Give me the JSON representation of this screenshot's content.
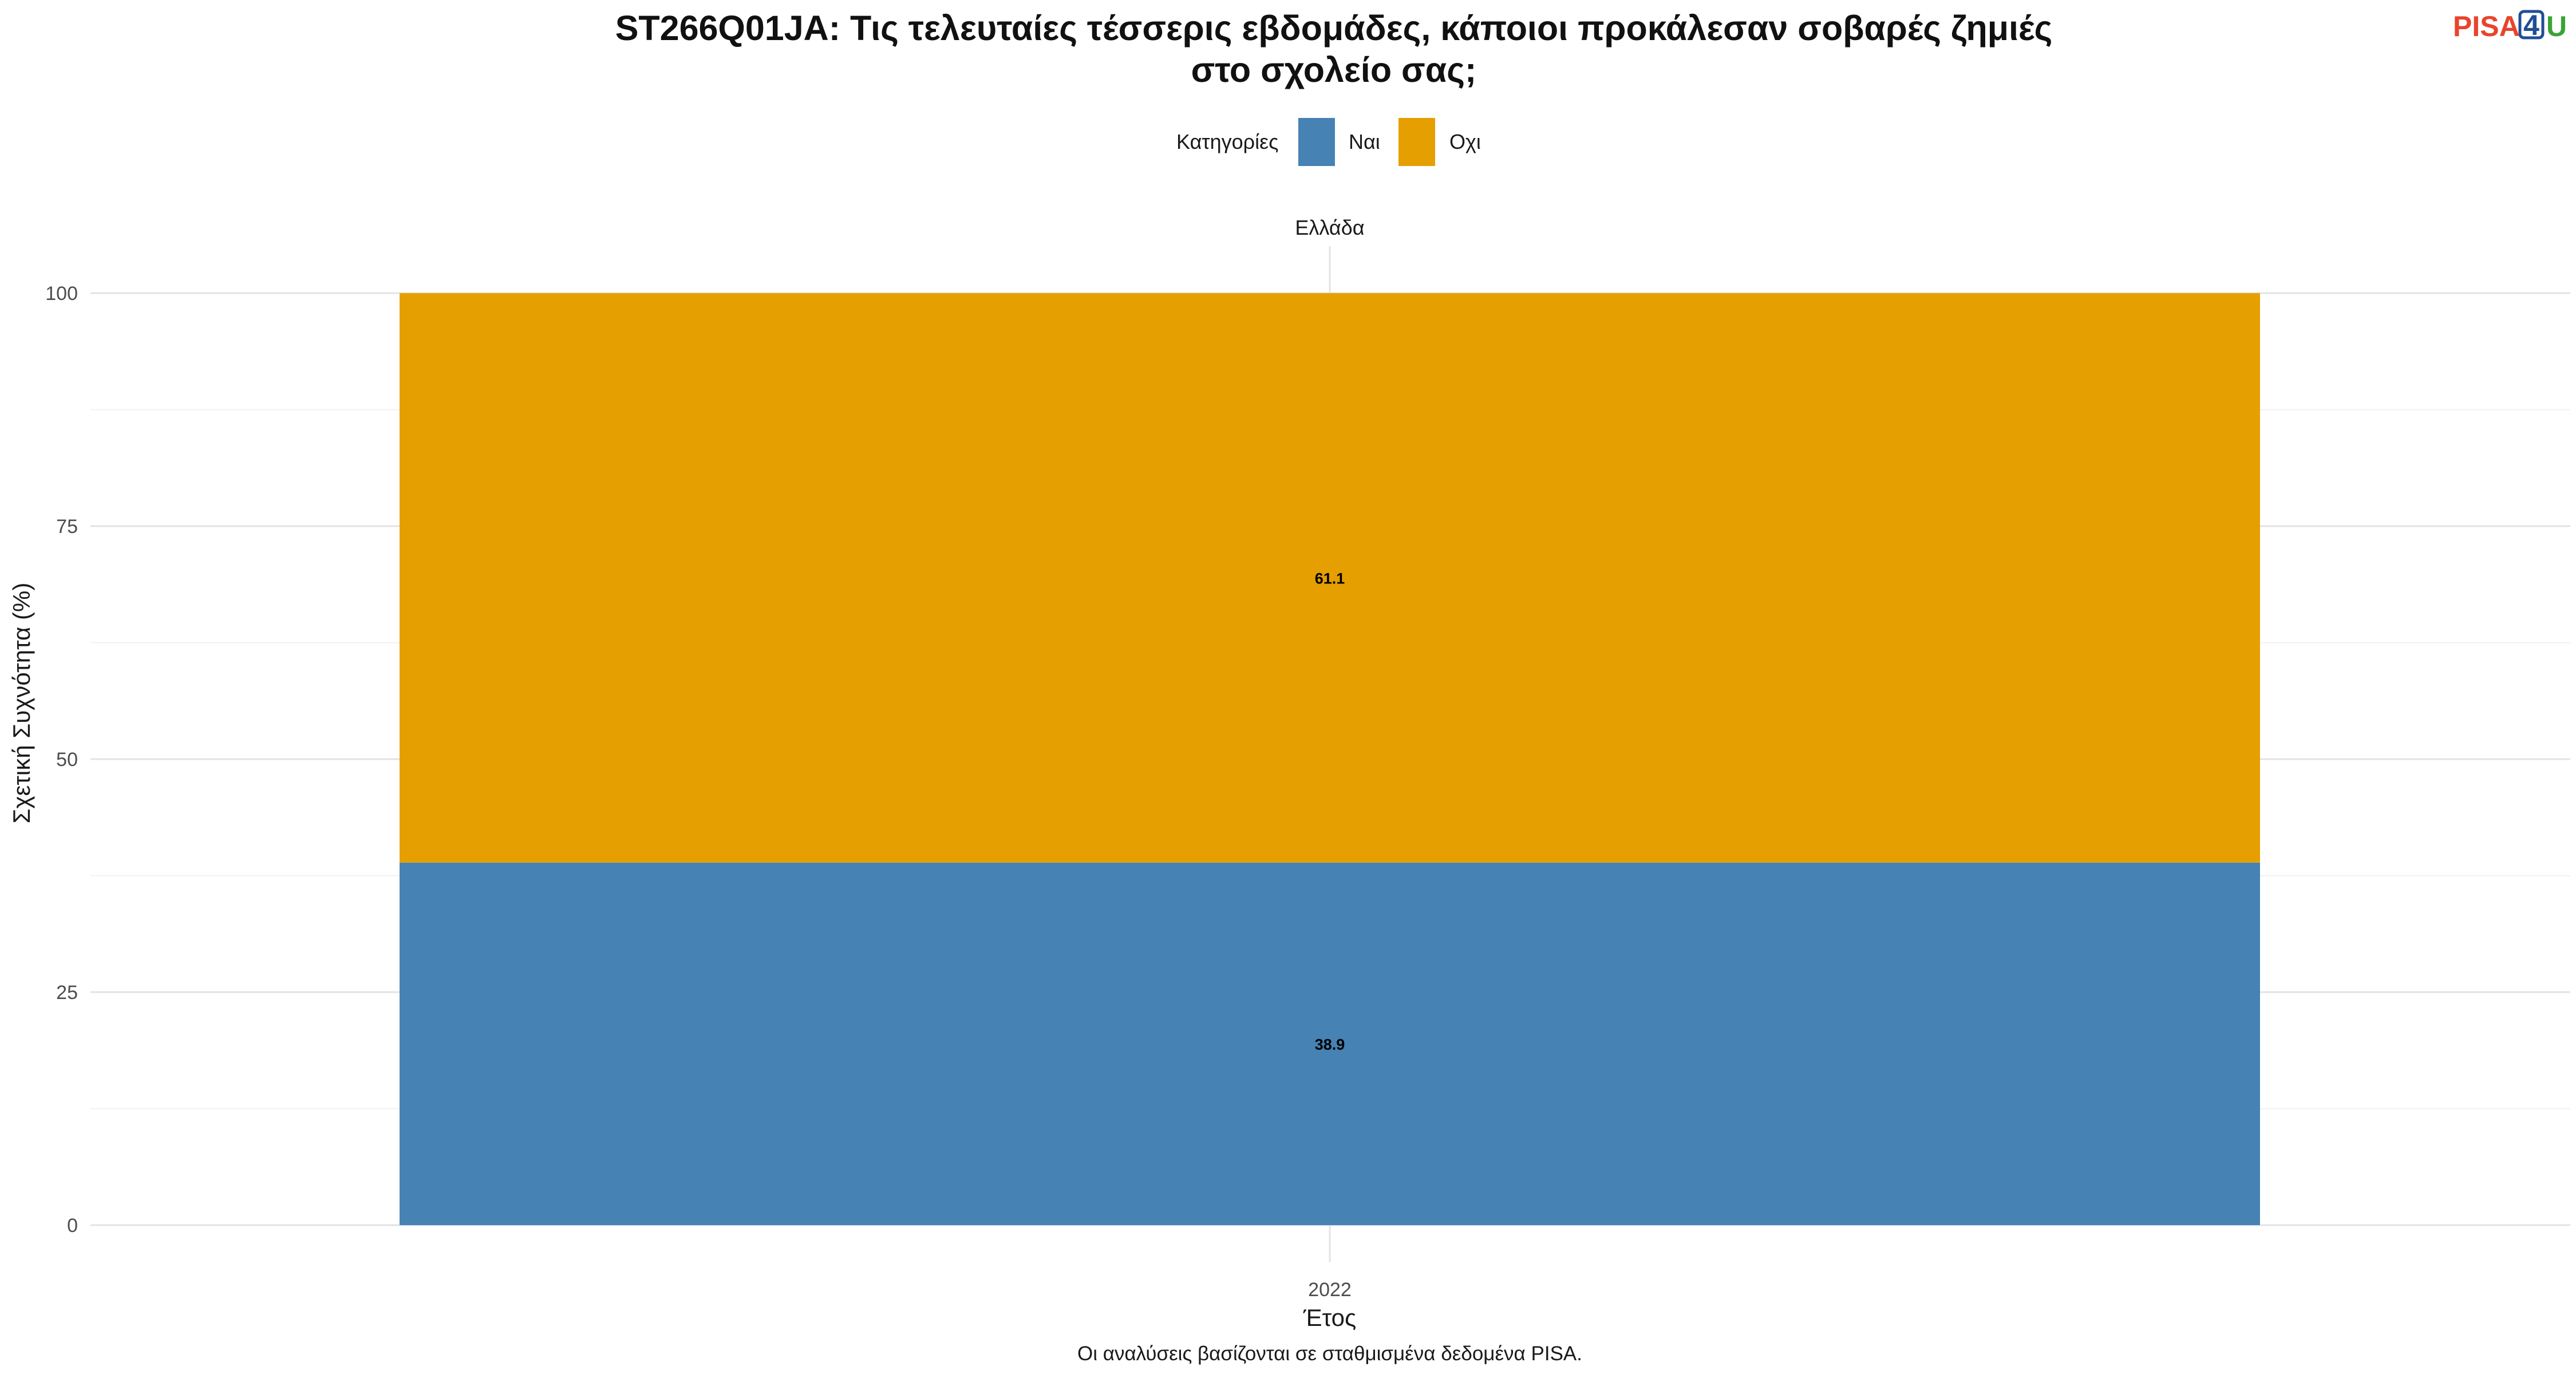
{
  "chart_data": {
    "type": "bar",
    "stacked": true,
    "title": "ST266Q01JA: Τις τελευταίες τέσσερις εβδομάδες, κάποιοι προκάλεσαν σοβαρές ζημιές",
    "title_line2": "στο σχολείο σας;",
    "facet": "Ελλάδα",
    "categories": [
      "2022"
    ],
    "series": [
      {
        "name": "Ναι",
        "values": [
          38.9
        ],
        "color": "#4682b4"
      },
      {
        "name": "Οχι",
        "values": [
          61.1
        ],
        "color": "#e69f00"
      }
    ],
    "xlabel": "Έτος",
    "ylabel": "Σχετική Συχνότητα (%)",
    "ylim": [
      0,
      100
    ],
    "yticks": [
      0,
      25,
      50,
      75,
      100
    ],
    "legend_title": "Κατηγορίες",
    "legend_position": "top",
    "grid": true,
    "caption": "Οι αναλύσεις βασίζονται σε σταθμισμένα δεδομένα PISA."
  },
  "logo": {
    "part1": "PISA",
    "part2": "4",
    "part3": "U",
    "colors": [
      "#e8442c",
      "#1f4e96",
      "#3aa335"
    ]
  }
}
